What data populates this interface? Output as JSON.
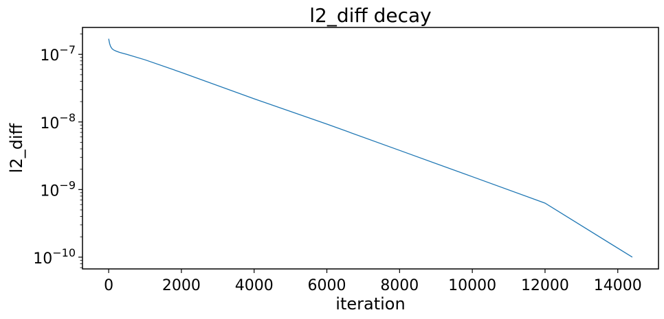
{
  "chart_data": {
    "type": "line",
    "title": "l2_diff decay",
    "xlabel": "iteration",
    "ylabel": "l2_diff",
    "xscale": "linear",
    "yscale": "log",
    "xlim": [
      -720,
      15120
    ],
    "ylim": [
      6.7e-11,
      2.5e-07
    ],
    "grid": false,
    "x_ticks": [
      0,
      2000,
      4000,
      6000,
      8000,
      10000,
      12000,
      14000
    ],
    "x_tick_labels": [
      "0",
      "2000",
      "4000",
      "6000",
      "8000",
      "10000",
      "12000",
      "14000"
    ],
    "y_ticks": [
      1e-10,
      1e-09,
      1e-08,
      1e-07
    ],
    "y_tick_labels": [
      {
        "base": "10",
        "exp": "−10"
      },
      {
        "base": "10",
        "exp": "−9"
      },
      {
        "base": "10",
        "exp": "−8"
      },
      {
        "base": "10",
        "exp": "−7"
      }
    ],
    "series": [
      {
        "color": "#1f77b4",
        "x": [
          0,
          25,
          50,
          75,
          100,
          150,
          200,
          300,
          500,
          1000,
          2000,
          4000,
          6000,
          8000,
          10000,
          12000,
          14400
        ],
        "y": [
          1.7e-07,
          1.45e-07,
          1.32e-07,
          1.25e-07,
          1.2e-07,
          1.15e-07,
          1.12e-07,
          1.07e-07,
          1e-07,
          8.3e-08,
          5.4e-08,
          2.2e-08,
          9.3e-09,
          3.8e-09,
          1.55e-09,
          6.3e-10,
          1e-10
        ]
      }
    ]
  }
}
